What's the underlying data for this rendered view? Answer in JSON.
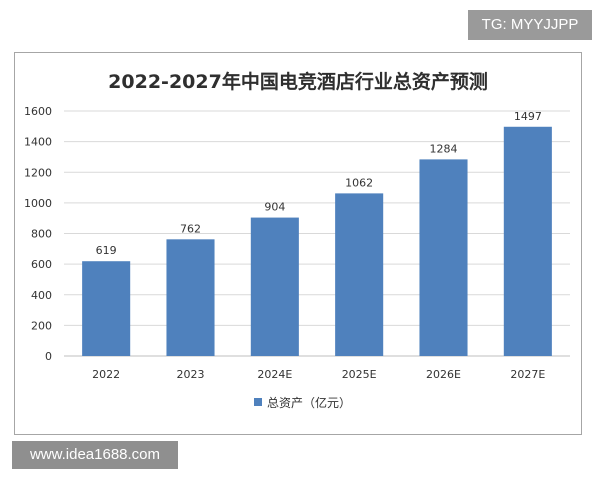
{
  "watermarks": {
    "top": "TG: MYYJJPP",
    "bottom": "www.idea1688.com"
  },
  "chart_data": {
    "type": "bar",
    "title": "2022-2027年中国电竞酒店行业总资产预测",
    "categories": [
      "2022",
      "2023",
      "2024E",
      "2025E",
      "2026E",
      "2027E"
    ],
    "series": [
      {
        "name": "总资产（亿元）",
        "values": [
          619,
          762,
          904,
          1062,
          1284,
          1497
        ],
        "color": "#4f81bd"
      }
    ],
    "ylim": [
      0,
      1600
    ],
    "yticks": [
      0,
      200,
      400,
      600,
      800,
      1000,
      1200,
      1400,
      1600
    ],
    "grid": true,
    "legend_position": "bottom"
  }
}
